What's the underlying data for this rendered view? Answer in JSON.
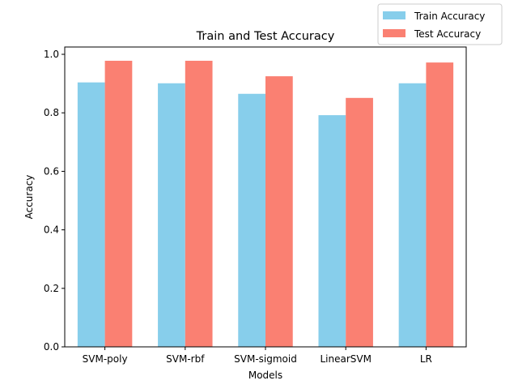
{
  "chart_data": {
    "type": "bar",
    "title": "Train and Test Accuracy",
    "xlabel": "Models",
    "ylabel": "Accuracy",
    "categories": [
      "SVM-poly",
      "SVM-rbf",
      "SVM-sigmoid",
      "LinearSVM",
      "LR"
    ],
    "series": [
      {
        "name": "Train Accuracy",
        "color": "#87CEEB",
        "values": [
          0.904,
          0.901,
          0.865,
          0.792,
          0.901
        ]
      },
      {
        "name": "Test Accuracy",
        "color": "#FA8072",
        "values": [
          0.978,
          0.978,
          0.925,
          0.851,
          0.972
        ]
      }
    ],
    "ylim": [
      0,
      1.025
    ],
    "yticks": [
      "0.0",
      "0.2",
      "0.4",
      "0.6",
      "0.8",
      "1.0"
    ],
    "grid": false,
    "legend_position": "top-right"
  }
}
